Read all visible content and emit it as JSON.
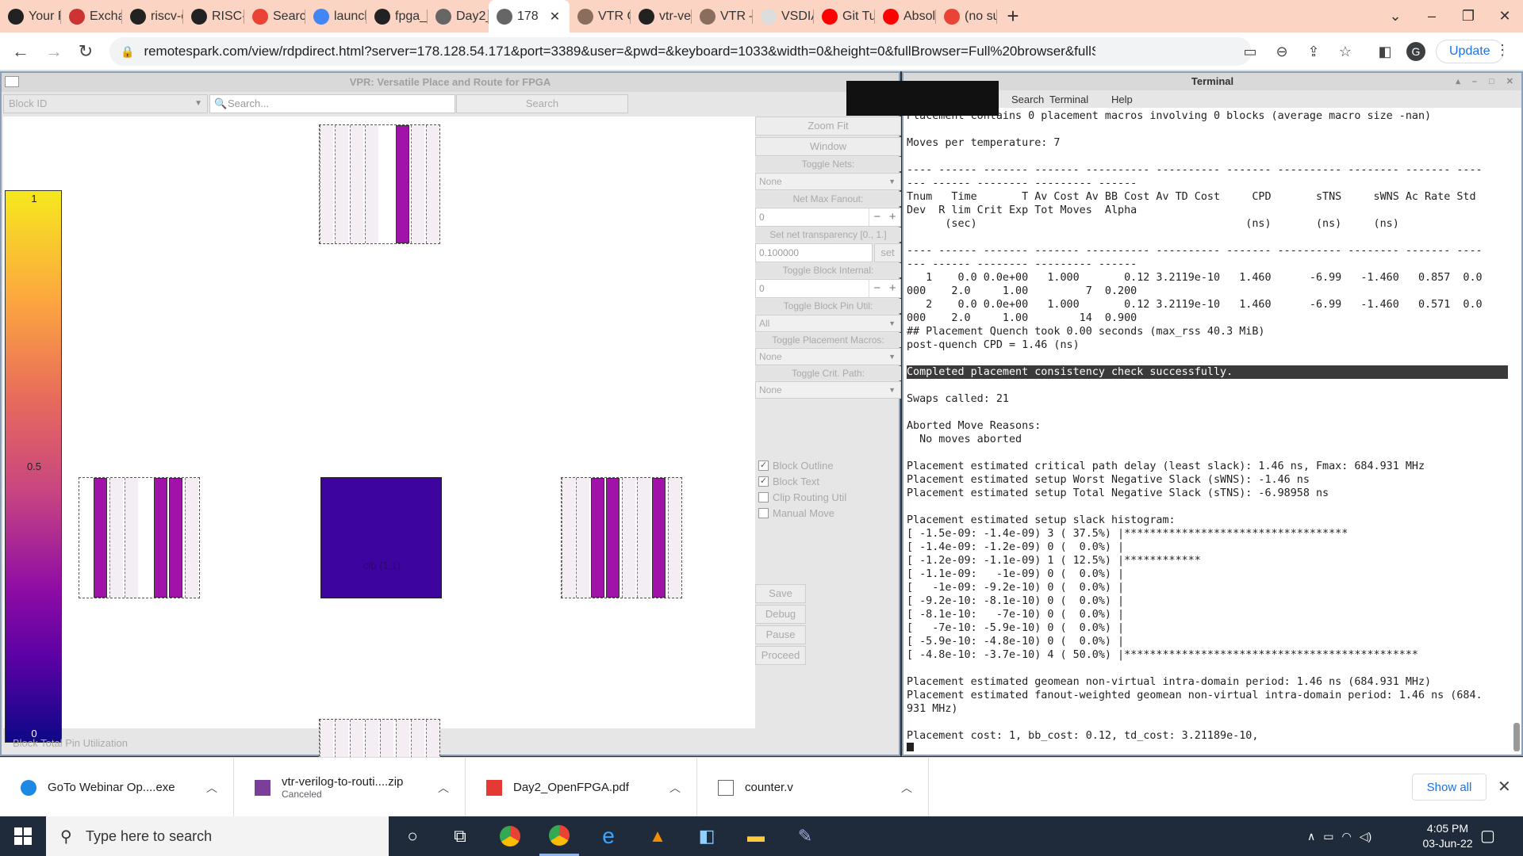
{
  "browser": {
    "tabs": [
      {
        "label": "Your Re",
        "icon": "github-icon"
      },
      {
        "label": "Exchan",
        "icon": "exchange-icon"
      },
      {
        "label": "riscv-cp",
        "icon": "github-icon"
      },
      {
        "label": "RISC-V",
        "icon": "github-icon"
      },
      {
        "label": "Search",
        "icon": "gmail-icon"
      },
      {
        "label": "launch",
        "icon": "google-icon"
      },
      {
        "label": "fpga_w",
        "icon": "github-icon"
      },
      {
        "label": "Day2_C",
        "icon": "globe-icon"
      },
      {
        "label": "178",
        "icon": "globe-icon",
        "active": true
      },
      {
        "label": "VTR Qu",
        "icon": "grid-icon"
      },
      {
        "label": "vtr-veri",
        "icon": "github-icon"
      },
      {
        "label": "VTR —",
        "icon": "grid-icon"
      },
      {
        "label": "VSDIAT",
        "icon": "page-icon"
      },
      {
        "label": "Git Tut",
        "icon": "youtube-icon"
      },
      {
        "label": "Absolu",
        "icon": "youtube-icon"
      },
      {
        "label": "(no sub",
        "icon": "gmail-icon"
      }
    ],
    "url": "remotespark.com/view/rdpdirect.html?server=178.128.54.171&port=3389&user=&pwd=&keyboard=1033&width=0&height=0&fullBrowser=Full%20browser&fullScreen=Full%...",
    "profile_initial": "G",
    "update_label": "Update"
  },
  "vpr": {
    "title": "VPR: Versatile Place and Route for FPGA",
    "block_id_placeholder": "Block ID",
    "search_placeholder": "Search...",
    "search_button": "Search",
    "legend": {
      "max": "1",
      "mid": "0.5",
      "min": "0"
    },
    "clb_label": "clb (1,1)",
    "status": "Block Total Pin Utilization",
    "panel": {
      "zoom_fit": "Zoom Fit",
      "window": "Window",
      "toggle_nets_label": "Toggle Nets:",
      "toggle_nets_value": "None",
      "net_max_fanout_label": "Net Max Fanout:",
      "net_max_fanout_value": "0",
      "transparency_label": "Set net transparency [0., 1.]",
      "transparency_value": "0.100000",
      "set_button": "set",
      "block_internal_label": "Toggle Block Internal:",
      "block_internal_value": "0",
      "block_pin_util_label": "Toggle Block Pin Util:",
      "block_pin_util_value": "All",
      "placement_macros_label": "Toggle Placement Macros:",
      "placement_macros_value": "None",
      "crit_path_label": "Toggle Crit. Path:",
      "crit_path_value": "None",
      "checkboxes": [
        {
          "label": "Block Outline",
          "checked": true
        },
        {
          "label": "Block Text",
          "checked": true
        },
        {
          "label": "Clip Routing Util",
          "checked": false
        },
        {
          "label": "Manual Move",
          "checked": false
        }
      ],
      "save": "Save",
      "debug": "Debug",
      "pause": "Pause",
      "proceed": "Proceed"
    }
  },
  "terminal": {
    "title": "Terminal",
    "menu": [
      "Search",
      "Terminal",
      "Help"
    ],
    "lines": [
      "Placement contains 0 placement macros involving 0 blocks (average macro size -nan)",
      "",
      "Moves per temperature: 7",
      "",
      "---- ------ ------- ------- ---------- ---------- ------- ---------- -------- ------- ----",
      "--- ------ -------- --------- ------",
      "Tnum   Time       T Av Cost Av BB Cost Av TD Cost     CPD       sTNS     sWNS Ac Rate Std",
      "Dev  R lim Crit Exp Tot Moves  Alpha",
      "      (sec)                                          (ns)       (ns)     (ns)",
      "",
      "---- ------ ------- ------- ---------- ---------- ------- ---------- -------- ------- ----",
      "--- ------ -------- --------- ------",
      "   1    0.0 0.0e+00   1.000       0.12 3.2119e-10   1.460      -6.99   -1.460   0.857  0.0",
      "000    2.0     1.00         7  0.200",
      "   2    0.0 0.0e+00   1.000       0.12 3.2119e-10   1.460      -6.99   -1.460   0.571  0.0",
      "000    2.0     1.00        14  0.900",
      "## Placement Quench took 0.00 seconds (max_rss 40.3 MiB)",
      "post-quench CPD = 1.46 (ns)",
      "",
      "Completed placement consistency check successfully.",
      "",
      "Swaps called: 21",
      "",
      "Aborted Move Reasons:",
      "  No moves aborted",
      "",
      "Placement estimated critical path delay (least slack): 1.46 ns, Fmax: 684.931 MHz",
      "Placement estimated setup Worst Negative Slack (sWNS): -1.46 ns",
      "Placement estimated setup Total Negative Slack (sTNS): -6.98958 ns",
      "",
      "Placement estimated setup slack histogram:",
      "[ -1.5e-09: -1.4e-09) 3 ( 37.5%) |***********************************",
      "[ -1.4e-09: -1.2e-09) 0 (  0.0%) |",
      "[ -1.2e-09: -1.1e-09) 1 ( 12.5%) |************",
      "[ -1.1e-09:   -1e-09) 0 (  0.0%) |",
      "[   -1e-09: -9.2e-10) 0 (  0.0%) |",
      "[ -9.2e-10: -8.1e-10) 0 (  0.0%) |",
      "[ -8.1e-10:   -7e-10) 0 (  0.0%) |",
      "[   -7e-10: -5.9e-10) 0 (  0.0%) |",
      "[ -5.9e-10: -4.8e-10) 0 (  0.0%) |",
      "[ -4.8e-10: -3.7e-10) 4 ( 50.0%) |**********************************************",
      "",
      "Placement estimated geomean non-virtual intra-domain period: 1.46 ns (684.931 MHz)",
      "Placement estimated fanout-weighted geomean non-virtual intra-domain period: 1.46 ns (684.",
      "931 MHz)",
      "",
      "Placement cost: 1, bb_cost: 0.12, td_cost: 3.21189e-10,"
    ],
    "highlight_line": "Completed placement consistency check successfully."
  },
  "downloads": [
    {
      "name": "GoTo Webinar Op....exe",
      "sub": ""
    },
    {
      "name": "vtr-verilog-to-routi....zip",
      "sub": "Canceled"
    },
    {
      "name": "Day2_OpenFPGA.pdf",
      "sub": ""
    },
    {
      "name": "counter.v",
      "sub": ""
    }
  ],
  "downloads_show_all": "Show all",
  "taskbar": {
    "search_placeholder": "Type here to search",
    "time": "4:05 PM",
    "date": "03-Jun-22"
  }
}
